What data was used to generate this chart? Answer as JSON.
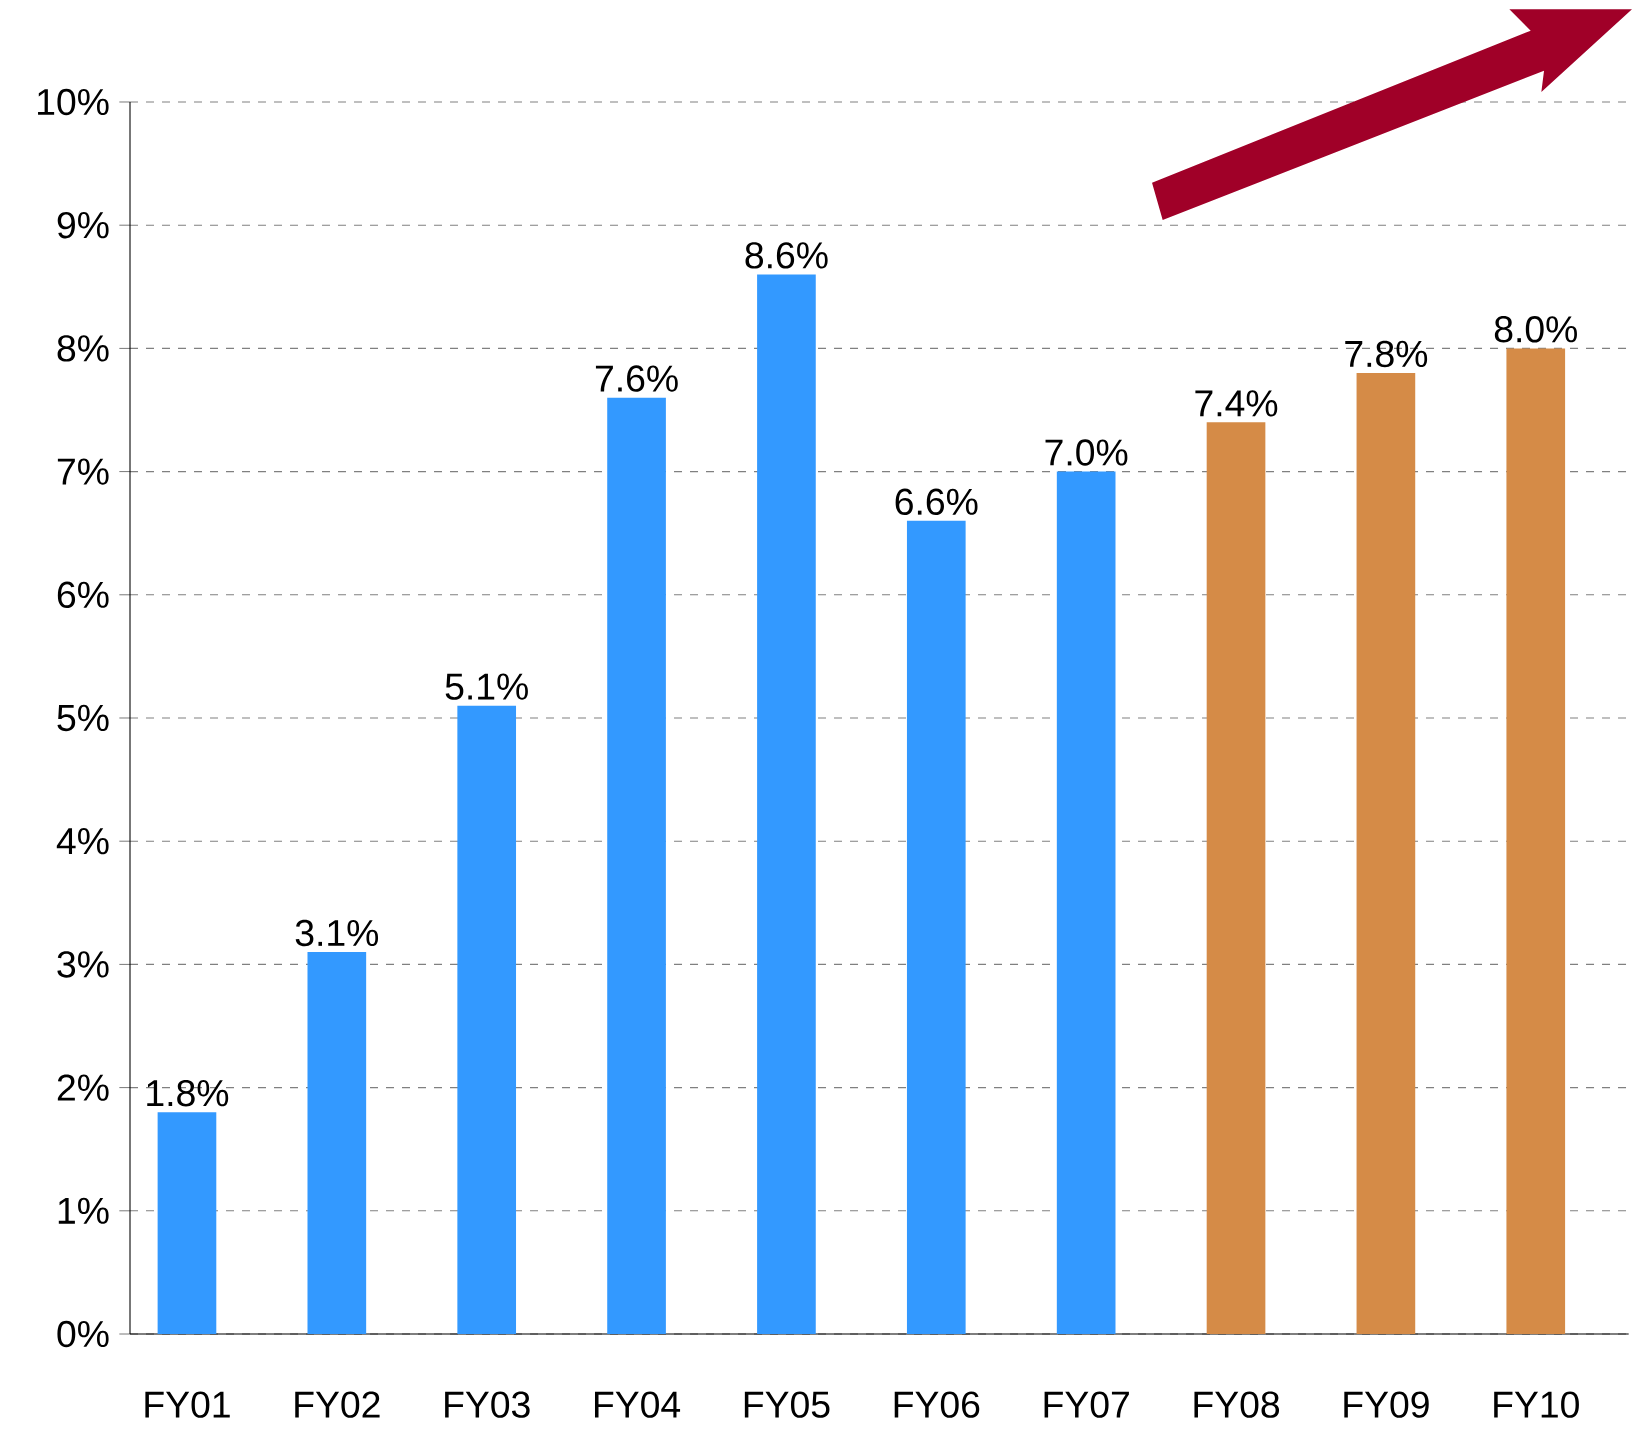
{
  "chart_data": {
    "type": "bar",
    "categories": [
      "FY01",
      "FY02",
      "FY03",
      "FY04",
      "FY05",
      "FY06",
      "FY07",
      "FY08",
      "FY09",
      "FY10"
    ],
    "values": [
      1.8,
      3.1,
      5.1,
      7.6,
      8.6,
      6.6,
      7.0,
      7.4,
      7.8,
      8.0
    ],
    "colors": [
      "#3399ff",
      "#3399ff",
      "#3399ff",
      "#3399ff",
      "#3399ff",
      "#3399ff",
      "#3399ff",
      "#d58b47",
      "#d58b47",
      "#d58b47"
    ],
    "value_labels": [
      "1.8%",
      "3.1%",
      "5.1%",
      "7.6%",
      "8.6%",
      "6.6%",
      "7.0%",
      "7.4%",
      "7.8%",
      "8.0%"
    ],
    "ylim": [
      0,
      10
    ],
    "yticks": [
      {
        "value": 0,
        "label": "0%"
      },
      {
        "value": 1,
        "label": "1%"
      },
      {
        "value": 2,
        "label": "2%"
      },
      {
        "value": 3,
        "label": "3%"
      },
      {
        "value": 4,
        "label": "4%"
      },
      {
        "value": 5,
        "label": "5%"
      },
      {
        "value": 6,
        "label": "6%"
      },
      {
        "value": 7,
        "label": "7%"
      },
      {
        "value": 8,
        "label": "8%"
      },
      {
        "value": 9,
        "label": "9%"
      },
      {
        "value": 10,
        "label": "10%"
      }
    ],
    "grid": "y"
  }
}
